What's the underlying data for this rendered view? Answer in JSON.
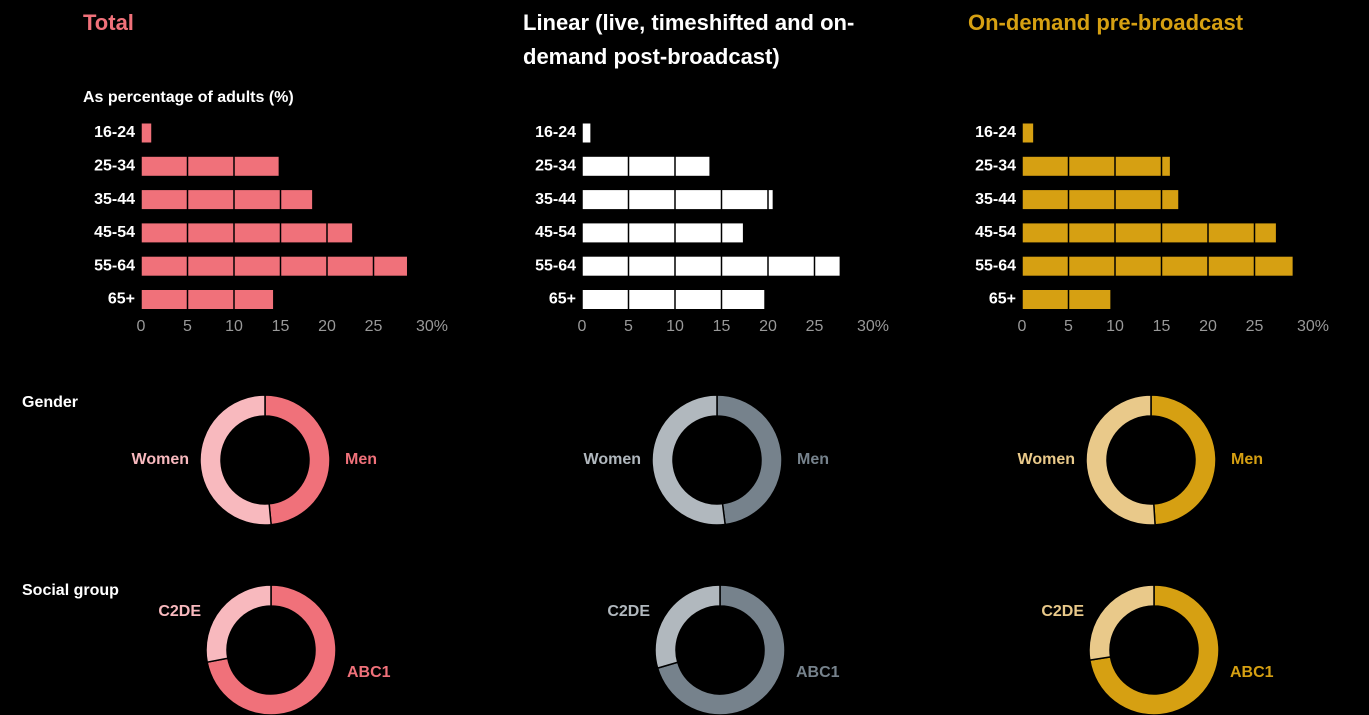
{
  "chart_data": [
    {
      "type": "bar",
      "title": "Total",
      "subtitle": "As percentage of adults (%)",
      "title_color": "#f0717a",
      "categories": [
        "16-24",
        "25-34",
        "35-44",
        "45-54",
        "55-64",
        "65+"
      ],
      "values": [
        1.1,
        14.8,
        18.4,
        22.7,
        28.6,
        14.2
      ],
      "color": "#f0717a",
      "xlim": [
        0,
        30
      ],
      "xticks": [
        0,
        5,
        10,
        15,
        20,
        25,
        {
          "value": 30,
          "label": "30%"
        }
      ]
    },
    {
      "type": "bar",
      "title": "Linear (live, timeshifted and on-demand post-broadcast)",
      "title_color": "#ffffff",
      "categories": [
        "16-24",
        "25-34",
        "35-44",
        "45-54",
        "55-64",
        "65+"
      ],
      "values": [
        0.9,
        13.7,
        20.5,
        17.3,
        27.7,
        19.6
      ],
      "color": "#ffffff",
      "xlim": [
        0,
        30
      ],
      "xticks": [
        0,
        5,
        10,
        15,
        20,
        25,
        {
          "value": 30,
          "label": "30%"
        }
      ]
    },
    {
      "type": "bar",
      "title": "On-demand pre-broadcast",
      "title_color": "#d6a012",
      "categories": [
        "16-24",
        "25-34",
        "35-44",
        "45-54",
        "55-64",
        "65+"
      ],
      "values": [
        1.2,
        15.9,
        16.8,
        27.3,
        29.1,
        9.5
      ],
      "color": "#d6a012",
      "xlim": [
        0,
        30
      ],
      "xticks": [
        0,
        5,
        10,
        15,
        20,
        25,
        {
          "value": 30,
          "label": "30%"
        }
      ]
    },
    {
      "type": "pie",
      "title": "Gender",
      "categories": [
        "Men",
        "Women"
      ],
      "values": [
        48.5,
        51.5
      ],
      "colors": [
        "#f0717a",
        "#f8b9be"
      ]
    },
    {
      "type": "pie",
      "categories": [
        "Men",
        "Women"
      ],
      "values": [
        48,
        52
      ],
      "colors": [
        "#76828c",
        "#b1b8be"
      ]
    },
    {
      "type": "pie",
      "categories": [
        "Men",
        "Women"
      ],
      "values": [
        49,
        51
      ],
      "colors": [
        "#d6a012",
        "#e9c98a"
      ]
    },
    {
      "type": "pie",
      "title": "Social group",
      "categories": [
        "ABC1",
        "C2DE"
      ],
      "values": [
        72,
        28
      ],
      "colors": [
        "#f0717a",
        "#f8b9be"
      ]
    },
    {
      "type": "pie",
      "categories": [
        "ABC1",
        "C2DE"
      ],
      "values": [
        70.5,
        29.5
      ],
      "colors": [
        "#76828c",
        "#b1b8be"
      ]
    },
    {
      "type": "pie",
      "categories": [
        "ABC1",
        "C2DE"
      ],
      "values": [
        72.5,
        27.5
      ],
      "colors": [
        "#d6a012",
        "#e9c98a"
      ]
    }
  ]
}
